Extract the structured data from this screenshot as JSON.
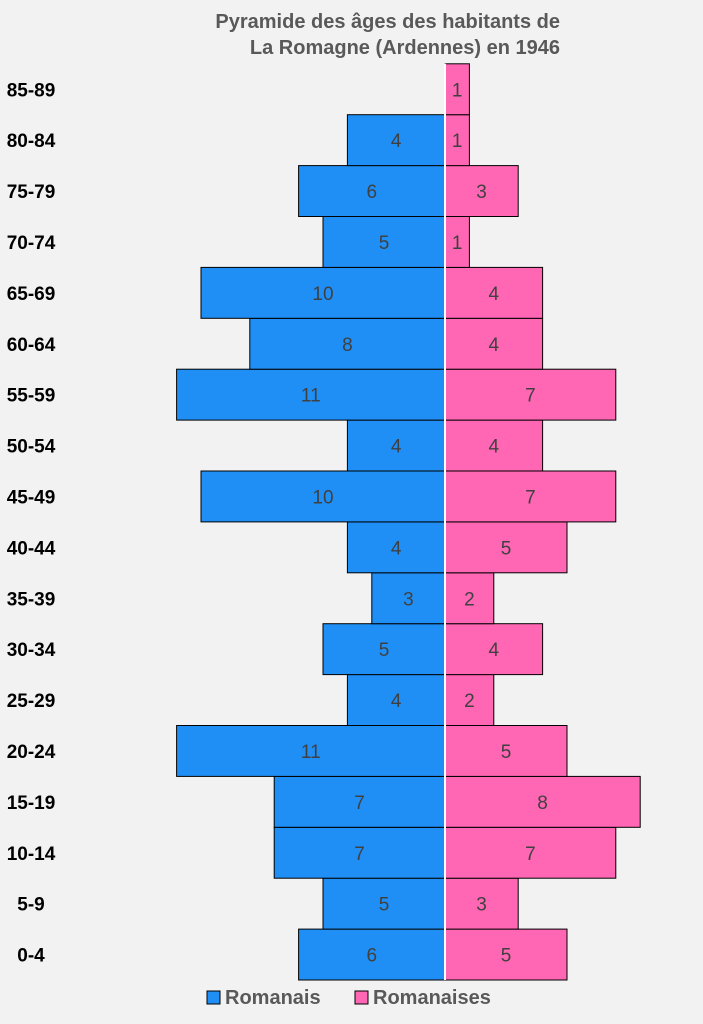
{
  "chart_data": {
    "type": "bar",
    "orientation": "horizontal-pyramid",
    "title_lines": [
      "Pyramide des âges des habitants de",
      "La Romagne (Ardennes) en 1946"
    ],
    "categories": [
      "0-4",
      "5-9",
      "10-14",
      "15-19",
      "20-24",
      "25-29",
      "30-34",
      "35-39",
      "40-44",
      "45-49",
      "50-54",
      "55-59",
      "60-64",
      "65-69",
      "70-74",
      "75-79",
      "80-84",
      "85-89"
    ],
    "series": [
      {
        "name": "Romanais",
        "side": "left",
        "color": "#1f8ff5",
        "values": [
          6,
          5,
          7,
          7,
          11,
          4,
          5,
          3,
          4,
          10,
          4,
          11,
          8,
          10,
          5,
          6,
          4,
          0
        ]
      },
      {
        "name": "Romanaises",
        "side": "right",
        "color": "#ff66b3",
        "values": [
          5,
          3,
          7,
          8,
          5,
          2,
          4,
          2,
          5,
          7,
          4,
          7,
          4,
          4,
          1,
          3,
          1,
          1
        ]
      }
    ],
    "legend_position": "bottom",
    "grid": false
  }
}
